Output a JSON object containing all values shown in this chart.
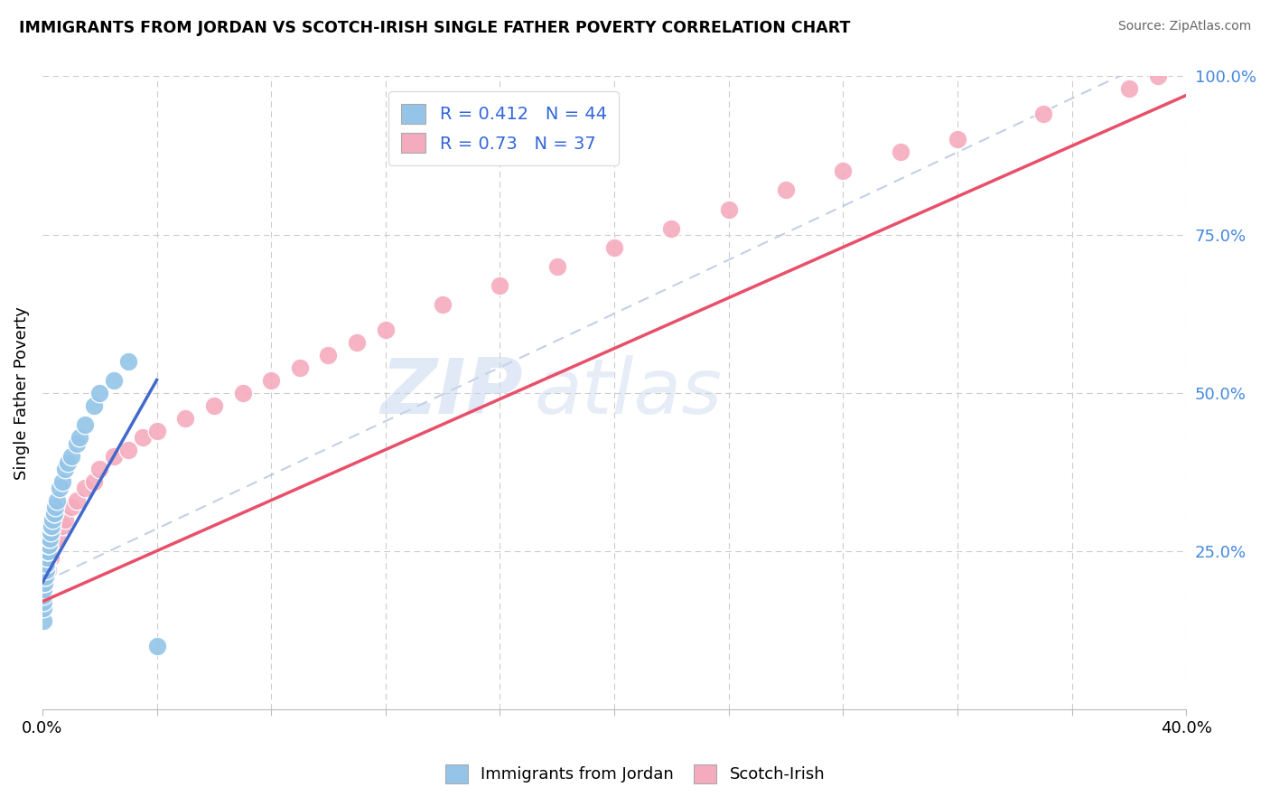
{
  "title": "IMMIGRANTS FROM JORDAN VS SCOTCH-IRISH SINGLE FATHER POVERTY CORRELATION CHART",
  "source": "Source: ZipAtlas.com",
  "ylabel": "Single Father Poverty",
  "xlim": [
    0.0,
    0.4
  ],
  "ylim": [
    0.0,
    1.0
  ],
  "xticks": [
    0.0,
    0.04,
    0.08,
    0.12,
    0.16,
    0.2,
    0.24,
    0.28,
    0.32,
    0.36,
    0.4
  ],
  "yticks": [
    0.0,
    0.25,
    0.5,
    0.75,
    1.0
  ],
  "yticklabels": [
    "",
    "25.0%",
    "50.0%",
    "75.0%",
    "100.0%"
  ],
  "blue_R": 0.412,
  "blue_N": 44,
  "pink_R": 0.73,
  "pink_N": 37,
  "blue_color": "#94C5E8",
  "pink_color": "#F4ABBE",
  "blue_line_color": "#4169CC",
  "pink_line_color": "#E8506A",
  "watermark_zip": "ZIP",
  "watermark_atlas": "atlas",
  "legend_label_blue": "Immigrants from Jordan",
  "legend_label_pink": "Scotch-Irish",
  "blue_x": [
    0.0002,
    0.0003,
    0.0004,
    0.0004,
    0.0005,
    0.0006,
    0.0007,
    0.0008,
    0.0009,
    0.001,
    0.001,
    0.0012,
    0.0013,
    0.0014,
    0.0015,
    0.0016,
    0.0017,
    0.0018,
    0.002,
    0.002,
    0.0022,
    0.0023,
    0.0025,
    0.003,
    0.003,
    0.0032,
    0.0035,
    0.004,
    0.004,
    0.0045,
    0.005,
    0.006,
    0.007,
    0.008,
    0.009,
    0.01,
    0.012,
    0.013,
    0.015,
    0.018,
    0.02,
    0.025,
    0.03,
    0.04
  ],
  "blue_y": [
    0.14,
    0.16,
    0.17,
    0.18,
    0.19,
    0.2,
    0.2,
    0.21,
    0.21,
    0.22,
    0.23,
    0.22,
    0.23,
    0.23,
    0.24,
    0.24,
    0.25,
    0.25,
    0.25,
    0.26,
    0.26,
    0.27,
    0.27,
    0.28,
    0.29,
    0.29,
    0.3,
    0.31,
    0.31,
    0.32,
    0.33,
    0.35,
    0.36,
    0.38,
    0.39,
    0.4,
    0.42,
    0.43,
    0.45,
    0.48,
    0.5,
    0.52,
    0.55,
    0.1
  ],
  "pink_x": [
    0.001,
    0.002,
    0.003,
    0.004,
    0.005,
    0.007,
    0.008,
    0.01,
    0.012,
    0.015,
    0.018,
    0.02,
    0.025,
    0.03,
    0.035,
    0.04,
    0.05,
    0.06,
    0.07,
    0.08,
    0.09,
    0.1,
    0.11,
    0.12,
    0.14,
    0.16,
    0.18,
    0.2,
    0.22,
    0.24,
    0.26,
    0.28,
    0.3,
    0.32,
    0.35,
    0.38,
    0.39
  ],
  "pink_y": [
    0.2,
    0.22,
    0.24,
    0.26,
    0.27,
    0.29,
    0.3,
    0.32,
    0.33,
    0.35,
    0.36,
    0.38,
    0.4,
    0.41,
    0.43,
    0.44,
    0.46,
    0.48,
    0.5,
    0.52,
    0.54,
    0.56,
    0.58,
    0.6,
    0.64,
    0.67,
    0.7,
    0.73,
    0.76,
    0.79,
    0.82,
    0.85,
    0.88,
    0.9,
    0.94,
    0.98,
    1.0
  ]
}
